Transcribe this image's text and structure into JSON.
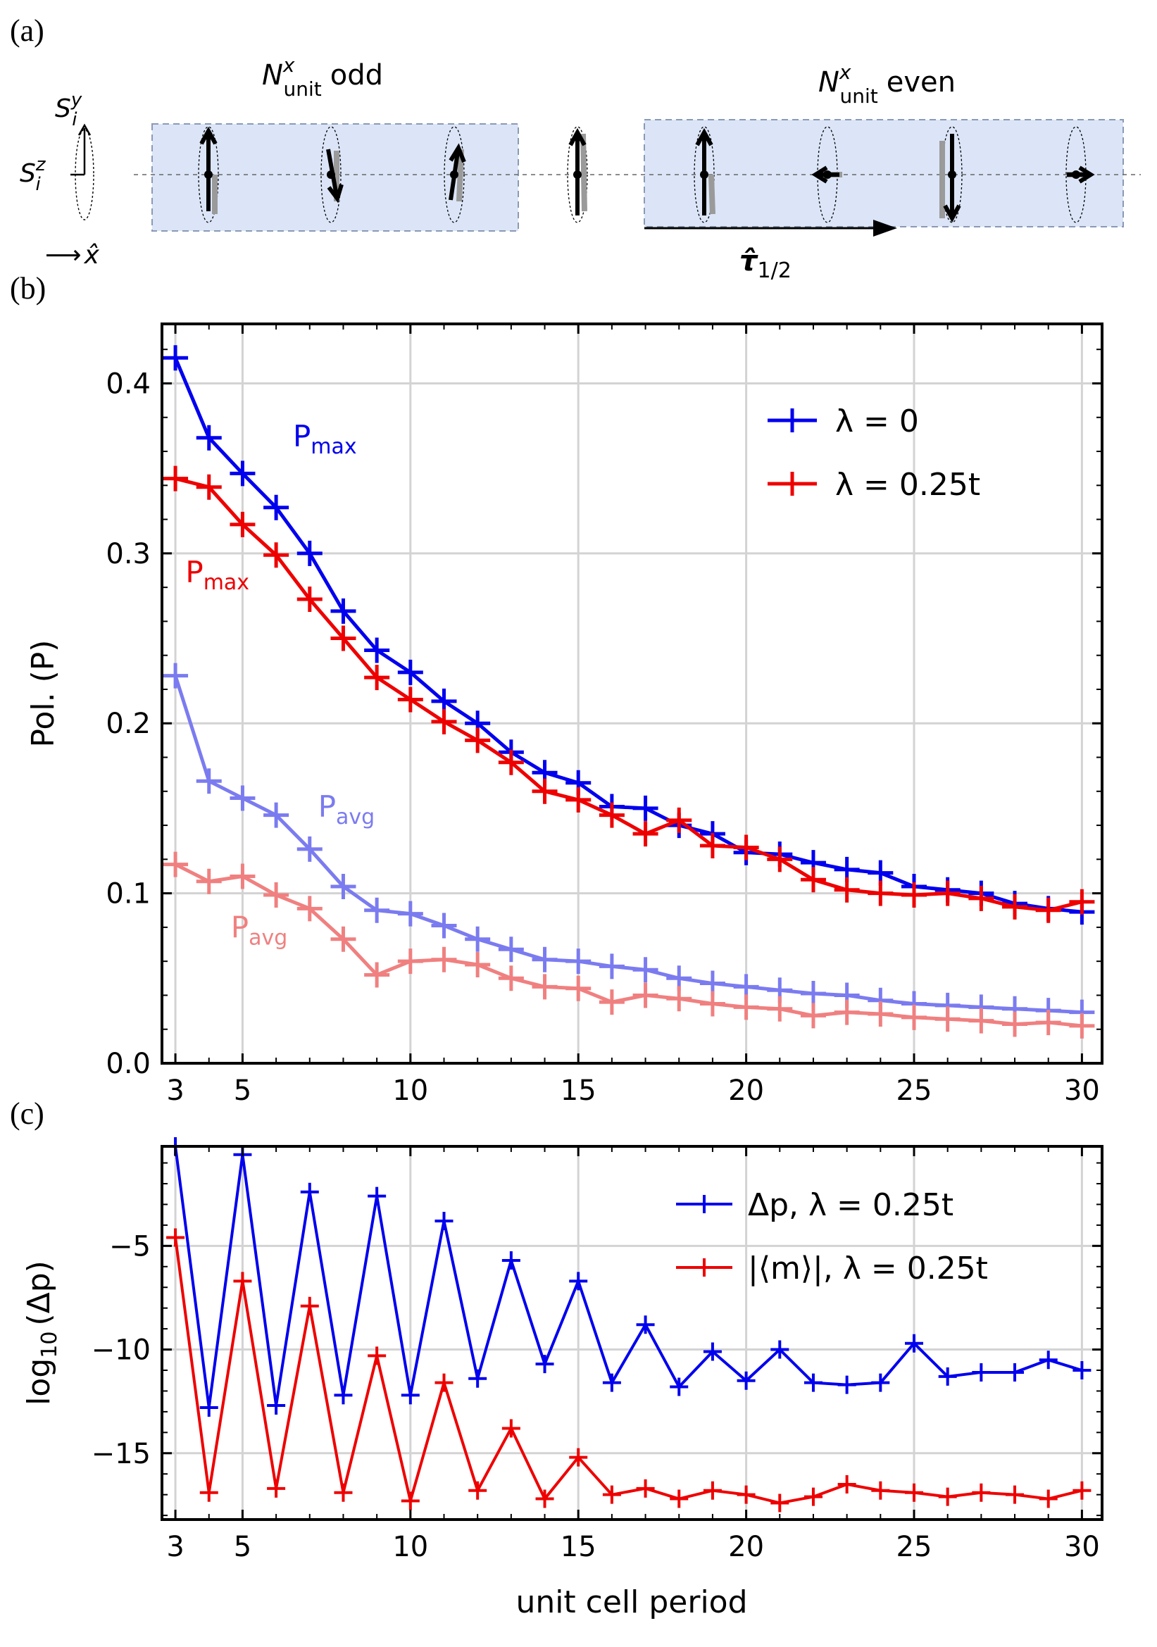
{
  "figure": {
    "panel_labels": [
      "(a)",
      "(b)",
      "(c)"
    ]
  },
  "schematic": {
    "odd_label_main": "N",
    "odd_label_sup": "x",
    "odd_label_sub": "unit",
    "odd_label_tail": "odd",
    "even_label_main": "N",
    "even_label_sup": "x",
    "even_label_sub": "unit",
    "even_label_tail": "even",
    "sy_main": "S",
    "sy_sub": "i",
    "sy_sup": "y",
    "sz_main": "S",
    "sz_sub": "i",
    "sz_sup": "z",
    "x_label": "x̂",
    "tau_main": "τ̂",
    "tau_sub": "1/2",
    "box_fill": "#dbe5f7",
    "colors": {
      "arrow_dark": "#000000",
      "arrow_light": "#999999"
    }
  },
  "chart_data": [
    {
      "type": "line",
      "panel": "(b)",
      "ylabel": "Pol. (P)",
      "xlim": [
        2.6,
        30.6
      ],
      "ylim": [
        0,
        0.435
      ],
      "xticks": [
        3,
        5,
        10,
        15,
        20,
        25,
        30
      ],
      "yticks": [
        0.0,
        0.1,
        0.2,
        0.3,
        0.4
      ],
      "ytick_labels": [
        "0.0",
        "0.1",
        "0.2",
        "0.3",
        "0.4"
      ],
      "grid": true,
      "legend_position": "top-right",
      "x": [
        3,
        4,
        5,
        6,
        7,
        8,
        9,
        10,
        11,
        12,
        13,
        14,
        15,
        16,
        17,
        18,
        19,
        20,
        21,
        22,
        23,
        24,
        25,
        26,
        27,
        28,
        29,
        30
      ],
      "series": [
        {
          "name": "λ = 0",
          "stat": "max",
          "color": "#0000ee",
          "values": [
            0.415,
            0.368,
            0.347,
            0.327,
            0.3,
            0.266,
            0.243,
            0.23,
            0.213,
            0.2,
            0.183,
            0.171,
            0.165,
            0.151,
            0.15,
            0.14,
            0.135,
            0.124,
            0.123,
            0.118,
            0.114,
            0.112,
            0.104,
            0.102,
            0.1,
            0.094,
            0.091,
            0.089
          ]
        },
        {
          "name": "λ = 0.25t",
          "stat": "max",
          "color": "#ee0000",
          "values": [
            0.344,
            0.339,
            0.317,
            0.299,
            0.273,
            0.25,
            0.227,
            0.214,
            0.201,
            0.19,
            0.177,
            0.16,
            0.155,
            0.146,
            0.135,
            0.143,
            0.128,
            0.127,
            0.12,
            0.108,
            0.102,
            0.1,
            0.099,
            0.1,
            0.097,
            0.092,
            0.09,
            0.095
          ]
        },
        {
          "name": "",
          "stat": "avg",
          "color": "#7b7bf0",
          "values": [
            0.228,
            0.166,
            0.156,
            0.146,
            0.126,
            0.104,
            0.09,
            0.088,
            0.081,
            0.073,
            0.067,
            0.061,
            0.06,
            0.057,
            0.055,
            0.05,
            0.047,
            0.045,
            0.043,
            0.041,
            0.04,
            0.037,
            0.035,
            0.034,
            0.033,
            0.032,
            0.031,
            0.03
          ]
        },
        {
          "name": "",
          "stat": "avg",
          "color": "#f08080",
          "values": [
            0.117,
            0.107,
            0.11,
            0.099,
            0.091,
            0.073,
            0.052,
            0.06,
            0.061,
            0.058,
            0.05,
            0.045,
            0.044,
            0.036,
            0.04,
            0.038,
            0.035,
            0.033,
            0.032,
            0.028,
            0.03,
            0.029,
            0.027,
            0.026,
            0.025,
            0.023,
            0.024,
            0.022
          ]
        }
      ],
      "annotations": [
        {
          "text": "P",
          "sub": "max",
          "color": "#0000ee",
          "x": 6.5,
          "y": 0.363
        },
        {
          "text": "P",
          "sub": "max",
          "color": "#ee0000",
          "x": 3.3,
          "y": 0.283
        },
        {
          "text": "P",
          "sub": "avg",
          "color": "#7b7bf0",
          "x": 7.25,
          "y": 0.145
        },
        {
          "text": "P",
          "sub": "avg",
          "color": "#f08080",
          "x": 4.65,
          "y": 0.074
        }
      ]
    },
    {
      "type": "line",
      "panel": "(c)",
      "xlabel": "unit cell period",
      "ylabel_main": "log",
      "ylabel_sub": "10",
      "ylabel_tail": "(Δp)",
      "xlim": [
        2.6,
        30.6
      ],
      "ylim": [
        -18.2,
        -0.2
      ],
      "xticks": [
        3,
        5,
        10,
        15,
        20,
        25,
        30
      ],
      "yticks": [
        -5,
        -10,
        -15
      ],
      "ytick_labels": [
        "−5",
        "−10",
        "−15"
      ],
      "grid": true,
      "legend_position": "top-right",
      "x": [
        3,
        4,
        5,
        6,
        7,
        8,
        9,
        10,
        11,
        12,
        13,
        14,
        15,
        16,
        17,
        18,
        19,
        20,
        21,
        22,
        23,
        24,
        25,
        26,
        27,
        28,
        29,
        30
      ],
      "series": [
        {
          "name": "Δp, λ = 0.25t",
          "color": "#0000ee",
          "values": [
            -0.2,
            -12.8,
            -0.6,
            -12.7,
            -2.4,
            -12.2,
            -2.6,
            -12.2,
            -3.8,
            -11.4,
            -5.7,
            -10.7,
            -6.7,
            -11.6,
            -8.8,
            -11.8,
            -10.1,
            -11.5,
            -10.0,
            -11.6,
            -11.7,
            -11.6,
            -9.7,
            -11.3,
            -11.1,
            -11.1,
            -10.5,
            -11.0
          ]
        },
        {
          "name": "|⟨m⟩|, λ = 0.25t",
          "color": "#ee0000",
          "values": [
            -4.6,
            -16.9,
            -6.7,
            -16.7,
            -7.9,
            -16.9,
            -10.3,
            -17.3,
            -11.6,
            -16.8,
            -13.8,
            -17.2,
            -15.2,
            -17.0,
            -16.7,
            -17.2,
            -16.8,
            -17.0,
            -17.4,
            -17.1,
            -16.5,
            -16.8,
            -16.9,
            -17.1,
            -16.9,
            -17.0,
            -17.2,
            -16.8
          ]
        }
      ]
    }
  ]
}
